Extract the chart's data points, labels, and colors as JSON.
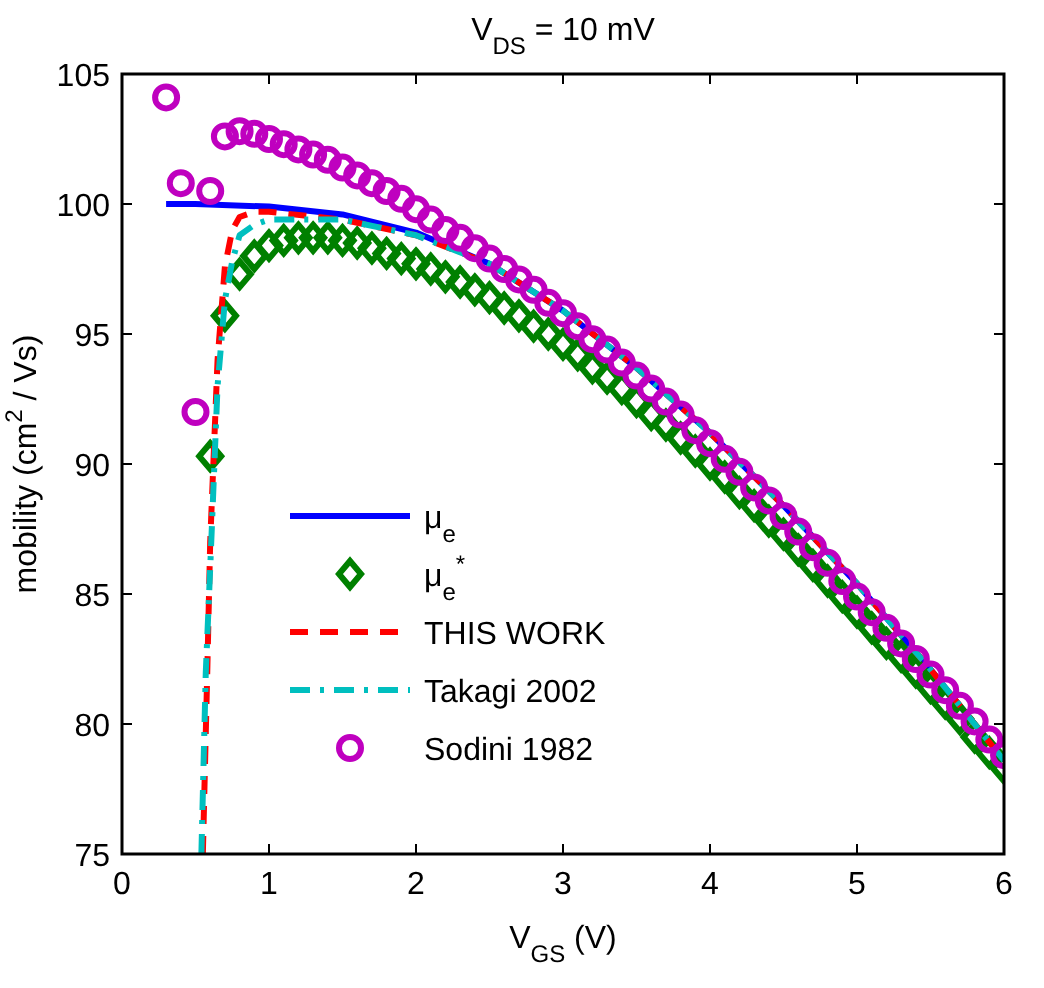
{
  "chart_data": {
    "type": "line",
    "title": "V$_{DS}$ = 10 mV",
    "xlabel": "V$_{GS}$ (V)",
    "ylabel": "mobility (cm$^{2}$ / Vs)",
    "xlim": [
      0,
      6
    ],
    "xticks": [
      0,
      1,
      2,
      3,
      4,
      5,
      6
    ],
    "ylim": [
      75,
      105
    ],
    "yticks": [
      75,
      80,
      85,
      90,
      95,
      100,
      105
    ],
    "grid": false,
    "legend": "bottom left",
    "series": [
      {
        "name": "μ$_{e}$",
        "color": "#0000ff",
        "line_style": "solid",
        "x": [
          0.3,
          0.5,
          1,
          1.5,
          2,
          2.5,
          3,
          3.5,
          4,
          4.5,
          5,
          5.5,
          6
        ],
        "values": [
          100,
          100,
          99.9,
          99.6,
          98.9,
          97.7,
          95.9,
          93.7,
          91.2,
          88.4,
          85.4,
          82.1,
          78.6
        ]
      },
      {
        "name": "μ$_{e}$$^{*}$",
        "type": "scatter",
        "marker": "diamond",
        "color": "#008000",
        "x": [
          0.6,
          0.7,
          0.8,
          0.9,
          1.0,
          1.1,
          1.2,
          1.3,
          1.4,
          1.5,
          1.6,
          1.7,
          1.8,
          1.9,
          2.0,
          2.1,
          2.2,
          2.3,
          2.4,
          2.5,
          2.6,
          2.7,
          2.8,
          2.9,
          3.0,
          3.1,
          3.2,
          3.3,
          3.4,
          3.5,
          3.6,
          3.7,
          3.8,
          3.9,
          4.0,
          4.1,
          4.2,
          4.3,
          4.4,
          4.5,
          4.6,
          4.7,
          4.8,
          4.9,
          5.0,
          5.1,
          5.2,
          5.3,
          5.4,
          5.5,
          5.6,
          5.7,
          5.8,
          5.9,
          6.0
        ],
        "values": [
          90.3,
          95.7,
          97.3,
          98.0,
          98.4,
          98.6,
          98.7,
          98.7,
          98.7,
          98.6,
          98.5,
          98.3,
          98.1,
          97.9,
          97.7,
          97.5,
          97.2,
          97.0,
          96.7,
          96.4,
          96.0,
          95.7,
          95.3,
          95.0,
          94.6,
          94.2,
          93.7,
          93.3,
          92.9,
          92.4,
          91.9,
          91.5,
          91.0,
          90.5,
          90.0,
          89.5,
          88.9,
          88.4,
          87.8,
          87.3,
          86.7,
          86.1,
          85.5,
          84.9,
          84.3,
          83.7,
          83.1,
          82.6,
          82.0,
          81.4,
          80.8,
          80.2,
          79.5,
          78.9,
          78.3
        ]
      },
      {
        "name": "THIS WORK",
        "color": "#ff0000",
        "line_style": "dashed",
        "x": [
          0.55,
          0.58,
          0.6,
          0.65,
          0.7,
          0.75,
          0.8,
          0.9,
          1,
          1.5,
          2,
          2.5,
          3,
          3.5,
          4,
          4.5,
          5,
          5.5,
          6
        ],
        "values": [
          75,
          82,
          87,
          94,
          97.6,
          99.0,
          99.5,
          99.7,
          99.7,
          99.4,
          98.8,
          97.7,
          95.9,
          93.7,
          91.2,
          88.4,
          85.4,
          82.1,
          78.6
        ]
      },
      {
        "name": "Takagi 2002",
        "color": "#00bfbf",
        "line_style": "dashdot",
        "x": [
          0.54,
          0.57,
          0.6,
          0.65,
          0.7,
          0.75,
          0.8,
          0.9,
          1,
          1.5,
          2,
          2.5,
          3,
          3.5,
          4,
          4.5,
          5,
          5.5,
          6
        ],
        "values": [
          75,
          82,
          86,
          93,
          96.3,
          97.8,
          98.8,
          99.2,
          99.4,
          99.4,
          98.8,
          97.7,
          95.9,
          93.7,
          91.2,
          88.4,
          85.4,
          82.1,
          78.6
        ]
      },
      {
        "name": "Sodini 1982",
        "type": "scatter",
        "marker": "circle",
        "color": "#bf00bf",
        "x": [
          0.3,
          0.4,
          0.5,
          0.6,
          0.7,
          0.8,
          0.9,
          1.0,
          1.1,
          1.2,
          1.3,
          1.4,
          1.5,
          1.6,
          1.7,
          1.8,
          1.9,
          2.0,
          2.1,
          2.2,
          2.3,
          2.4,
          2.5,
          2.6,
          2.7,
          2.8,
          2.9,
          3.0,
          3.1,
          3.2,
          3.3,
          3.4,
          3.5,
          3.6,
          3.7,
          3.8,
          3.9,
          4.0,
          4.1,
          4.2,
          4.3,
          4.4,
          4.5,
          4.6,
          4.7,
          4.8,
          4.9,
          5.0,
          5.1,
          5.2,
          5.3,
          5.4,
          5.5,
          5.6,
          5.7,
          5.8,
          5.9,
          6.0
        ],
        "values": [
          104.1,
          100.8,
          92.0,
          100.5,
          102.6,
          102.8,
          102.7,
          102.5,
          102.3,
          102.1,
          101.9,
          101.7,
          101.4,
          101.1,
          100.8,
          100.5,
          100.2,
          99.8,
          99.4,
          99.0,
          98.7,
          98.3,
          97.9,
          97.5,
          97.1,
          96.7,
          96.2,
          95.8,
          95.3,
          94.8,
          94.4,
          93.9,
          93.4,
          92.9,
          92.4,
          91.9,
          91.3,
          90.8,
          90.2,
          89.7,
          89.1,
          88.6,
          88.0,
          87.4,
          86.8,
          86.2,
          85.5,
          84.9,
          84.3,
          83.7,
          83.1,
          82.5,
          81.9,
          81.3,
          80.7,
          80.1,
          79.4,
          78.8
        ]
      }
    ]
  }
}
